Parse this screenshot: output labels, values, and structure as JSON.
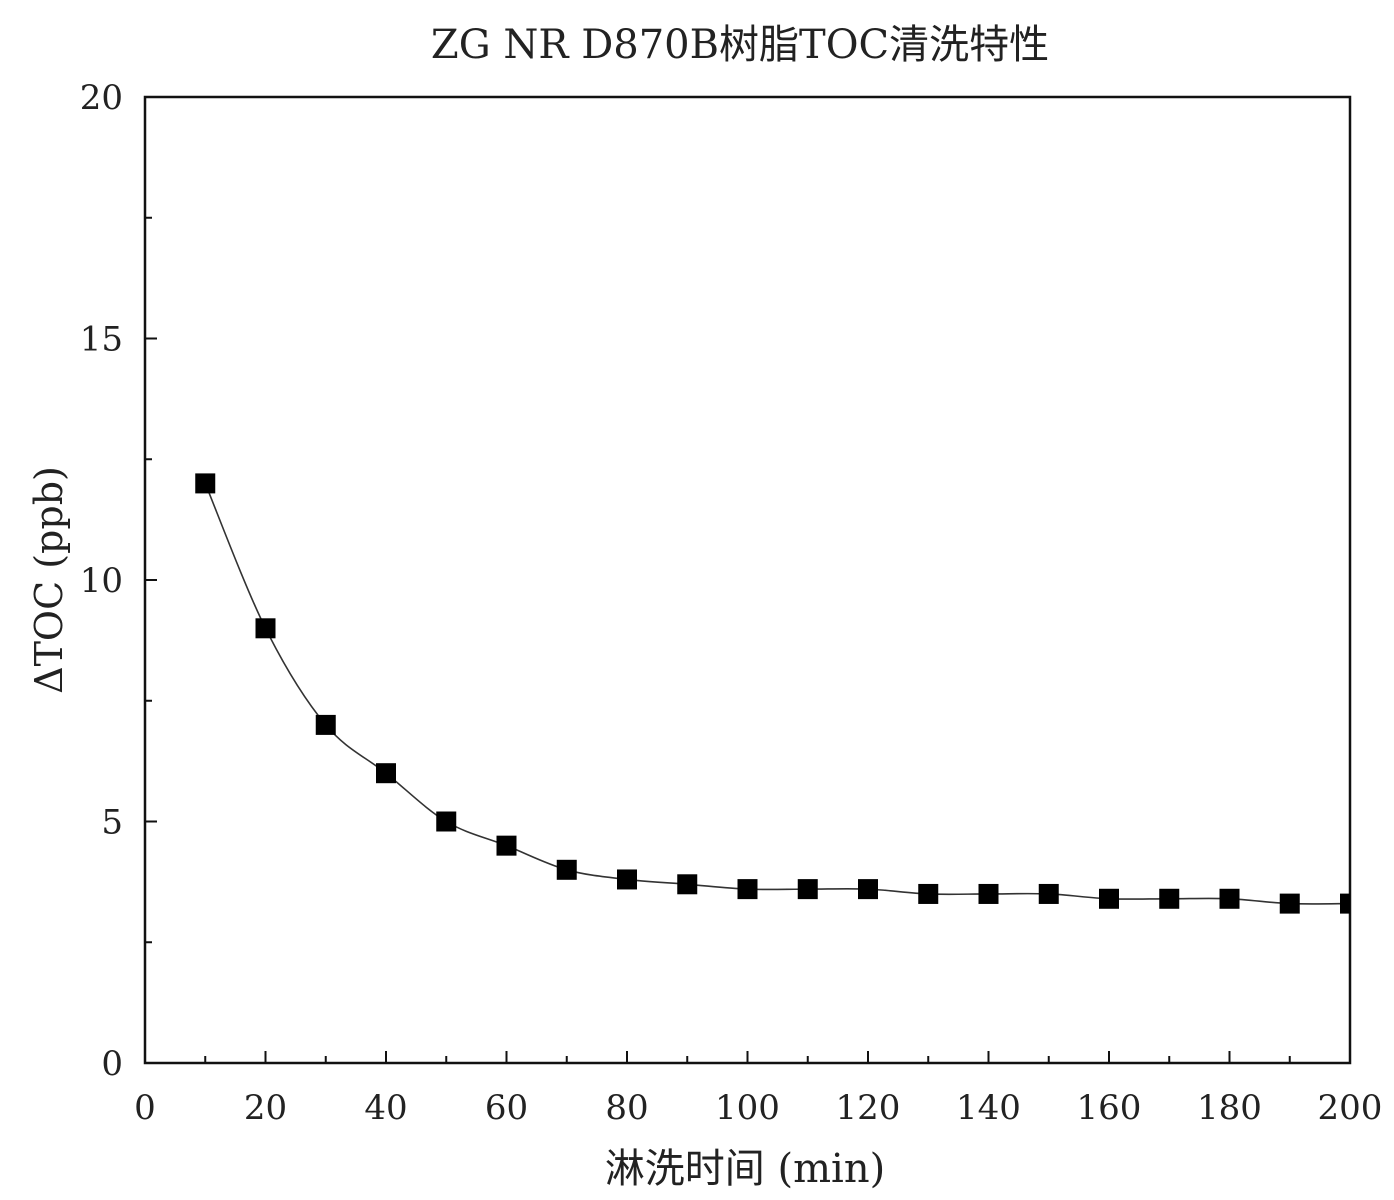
{
  "chart_data": {
    "type": "line",
    "title": "ZG NR D870B树脂TOC清洗特性",
    "xlabel": "淋洗时间 (min)",
    "ylabel": "ΔTOC (ppb)",
    "xlim": [
      0,
      200
    ],
    "ylim": [
      0,
      20
    ],
    "x_ticks": [
      "0",
      "20",
      "40",
      "60",
      "80",
      "100",
      "120",
      "140",
      "160",
      "180",
      "200"
    ],
    "y_ticks": [
      "0",
      "5",
      "10",
      "15",
      "20"
    ],
    "grid": false,
    "marker": "square",
    "line_style": "smooth",
    "colors": {
      "line": "#333333",
      "marker": "#000000"
    },
    "series": [
      {
        "x": [
          10,
          20,
          30,
          40,
          50,
          60,
          70,
          80,
          90,
          100,
          110,
          120,
          130,
          140,
          150,
          160,
          170,
          180,
          190,
          200
        ],
        "y": [
          12.0,
          9.0,
          7.0,
          6.0,
          5.0,
          4.5,
          4.0,
          3.8,
          3.7,
          3.6,
          3.6,
          3.6,
          3.5,
          3.5,
          3.5,
          3.4,
          3.4,
          3.4,
          3.3,
          3.3
        ]
      }
    ]
  }
}
